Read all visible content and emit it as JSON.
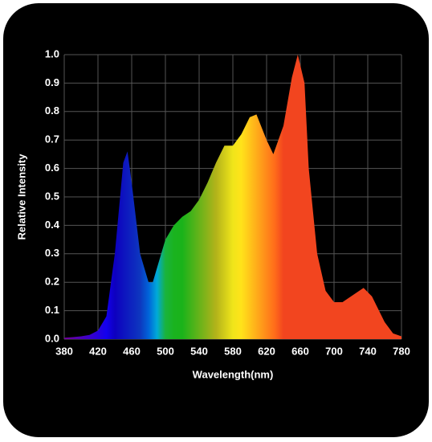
{
  "chart_data": {
    "type": "area",
    "x_label": "Wavelength(nm)",
    "y_label": "Relative Intensity",
    "x": [
      380,
      390,
      400,
      410,
      420,
      430,
      440,
      450,
      455,
      460,
      470,
      480,
      485,
      490,
      500,
      510,
      520,
      530,
      540,
      550,
      560,
      570,
      580,
      590,
      600,
      608,
      620,
      628,
      640,
      650,
      657,
      665,
      670,
      680,
      690,
      700,
      710,
      720,
      735,
      745,
      760,
      770,
      780
    ],
    "values": [
      0.005,
      0.007,
      0.01,
      0.015,
      0.03,
      0.08,
      0.3,
      0.62,
      0.66,
      0.55,
      0.3,
      0.2,
      0.2,
      0.25,
      0.35,
      0.4,
      0.43,
      0.45,
      0.49,
      0.55,
      0.62,
      0.68,
      0.68,
      0.72,
      0.78,
      0.79,
      0.7,
      0.65,
      0.75,
      0.92,
      1.0,
      0.9,
      0.6,
      0.3,
      0.17,
      0.13,
      0.13,
      0.15,
      0.18,
      0.15,
      0.06,
      0.02,
      0.01
    ],
    "xlim": [
      380,
      780
    ],
    "ylim": [
      0,
      1
    ],
    "xticks": [
      380,
      420,
      460,
      500,
      540,
      580,
      620,
      660,
      700,
      740,
      780
    ],
    "yticks": [
      {
        "value": 0,
        "label": "0.0"
      },
      0.1,
      0.2,
      0.3,
      0.4,
      0.5,
      0.6,
      0.7,
      0.8,
      0.9,
      {
        "value": 1,
        "label": "1.0"
      }
    ],
    "grid": true,
    "fill": "spectrum"
  }
}
